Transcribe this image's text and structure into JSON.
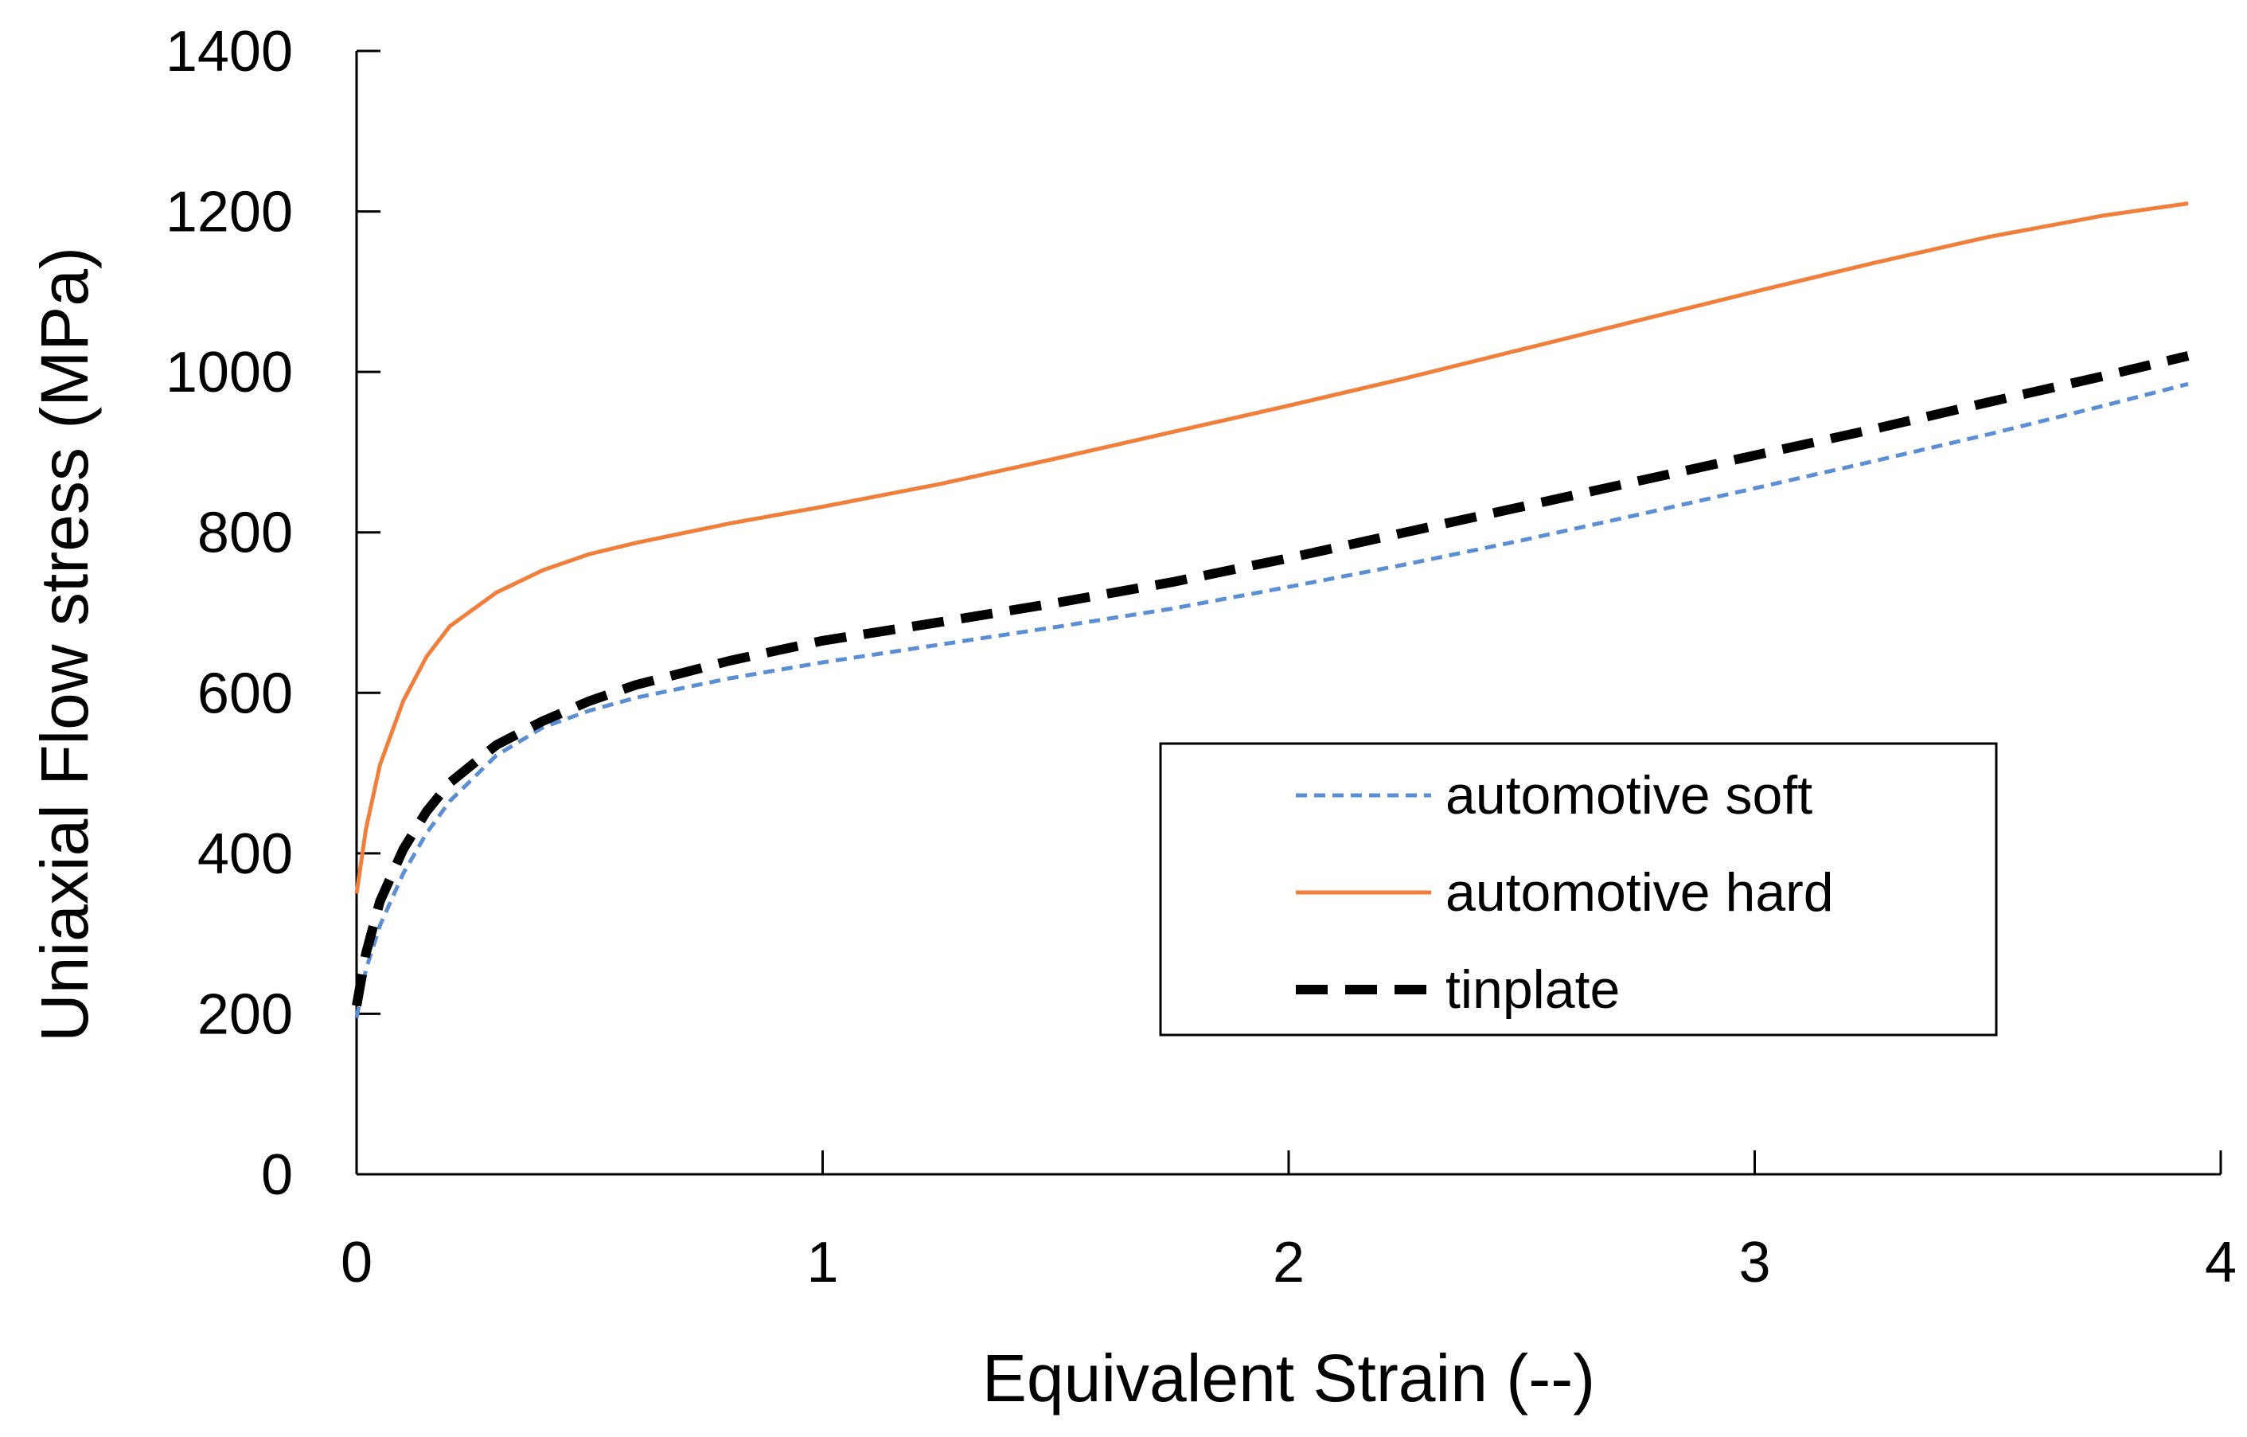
{
  "chart_data": {
    "type": "line",
    "title": "",
    "xlabel": "Equivalent Strain (--)",
    "ylabel": "Uniaxial Flow stress (MPa)",
    "xlim": [
      0,
      4
    ],
    "ylim": [
      0,
      1400
    ],
    "xticks": [
      0,
      1,
      2,
      3,
      4
    ],
    "yticks": [
      0,
      200,
      400,
      600,
      800,
      1000,
      1200,
      1400
    ],
    "grid": false,
    "legend": {
      "position": "center-right",
      "boxed": true
    },
    "series": [
      {
        "name": "automotive soft",
        "color": "#5b8fd4",
        "style": "dotted",
        "x": [
          0,
          0.02,
          0.05,
          0.1,
          0.15,
          0.2,
          0.3,
          0.4,
          0.5,
          0.6,
          0.8,
          1.0,
          1.25,
          1.5,
          1.75,
          2.0,
          2.25,
          2.5,
          2.75,
          3.0,
          3.25,
          3.5,
          3.75,
          3.93
        ],
        "y": [
          195,
          255,
          310,
          375,
          425,
          465,
          522,
          557,
          578,
          594,
          618,
          638,
          660,
          682,
          705,
          732,
          760,
          790,
          822,
          855,
          888,
          922,
          958,
          985
        ]
      },
      {
        "name": "automotive hard",
        "color": "#f07f3c",
        "style": "solid",
        "x": [
          0,
          0.02,
          0.05,
          0.1,
          0.15,
          0.2,
          0.3,
          0.4,
          0.5,
          0.6,
          0.8,
          1.0,
          1.25,
          1.5,
          1.75,
          2.0,
          2.25,
          2.5,
          2.75,
          3.0,
          3.25,
          3.5,
          3.75,
          3.93
        ],
        "y": [
          350,
          430,
          510,
          590,
          645,
          683,
          725,
          753,
          773,
          787,
          811,
          832,
          860,
          892,
          925,
          958,
          992,
          1028,
          1064,
          1100,
          1135,
          1168,
          1195,
          1210
        ]
      },
      {
        "name": "tinplate",
        "color": "#000000",
        "style": "dashed",
        "x": [
          0,
          0.02,
          0.05,
          0.1,
          0.15,
          0.2,
          0.3,
          0.4,
          0.5,
          0.6,
          0.8,
          1.0,
          1.25,
          1.5,
          1.75,
          2.0,
          2.25,
          2.5,
          2.75,
          3.0,
          3.25,
          3.5,
          3.75,
          3.93
        ],
        "y": [
          210,
          275,
          340,
          405,
          452,
          488,
          535,
          565,
          590,
          610,
          640,
          665,
          688,
          712,
          738,
          768,
          800,
          832,
          864,
          896,
          928,
          962,
          995,
          1020
        ]
      }
    ]
  }
}
